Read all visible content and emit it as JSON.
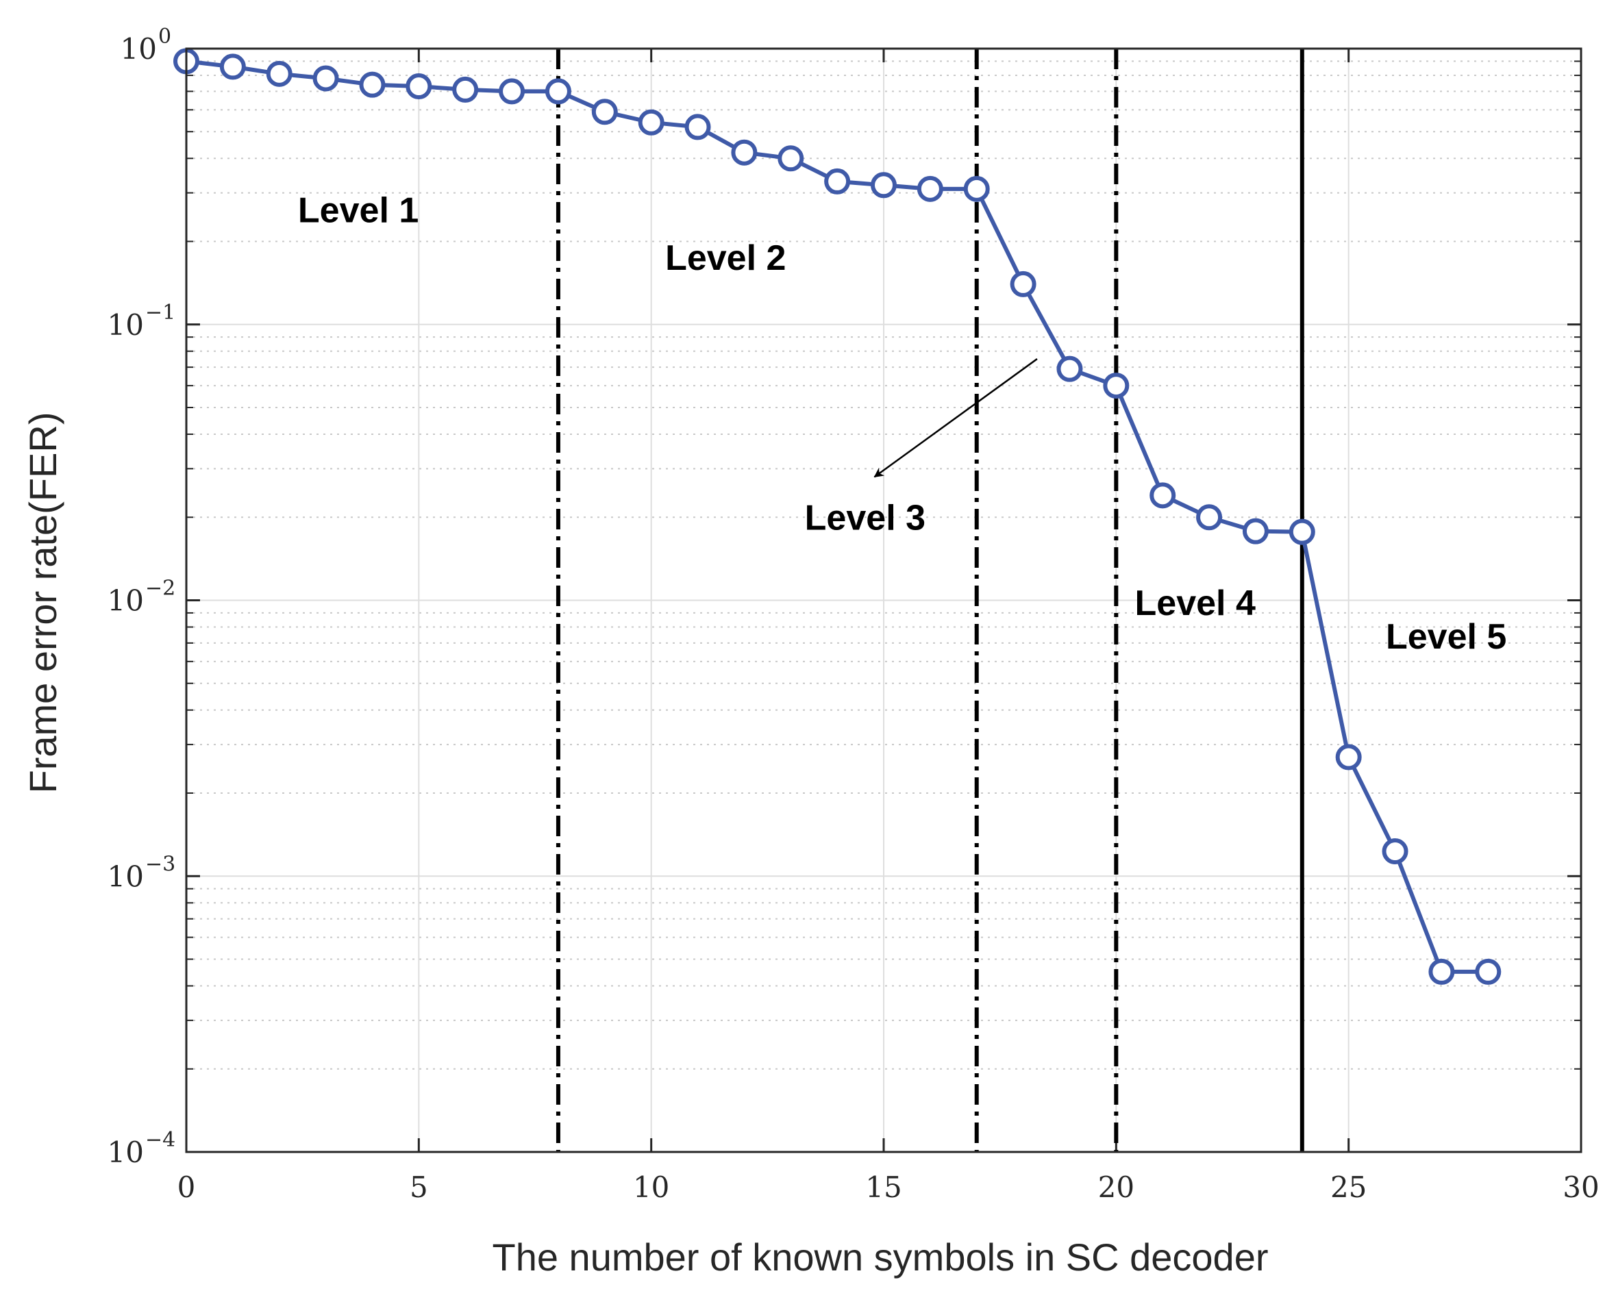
{
  "chart_data": {
    "type": "line",
    "title": "",
    "xlabel": "The number of known symbols in SC decoder",
    "ylabel": "Frame error rate(FER)",
    "xlim": [
      0,
      30
    ],
    "ylim": [
      0.0001,
      1
    ],
    "yscale": "log",
    "grid": true,
    "x_ticks": [
      0,
      5,
      10,
      15,
      20,
      25,
      30
    ],
    "y_ticks": [
      {
        "value": 1,
        "base": "10",
        "exp": "0"
      },
      {
        "value": 0.1,
        "base": "10",
        "exp": "−1"
      },
      {
        "value": 0.01,
        "base": "10",
        "exp": "−2"
      },
      {
        "value": 0.001,
        "base": "10",
        "exp": "−3"
      },
      {
        "value": 0.0001,
        "base": "10",
        "exp": "−4"
      }
    ],
    "series": [
      {
        "color": "#3f5aa8",
        "marker": "circle",
        "x": [
          0,
          1,
          2,
          3,
          4,
          5,
          6,
          7,
          8,
          9,
          10,
          11,
          12,
          13,
          14,
          15,
          16,
          17,
          18,
          19,
          20,
          21,
          22,
          23,
          24,
          25,
          26,
          27,
          28
        ],
        "y": [
          0.9,
          0.86,
          0.81,
          0.78,
          0.74,
          0.73,
          0.71,
          0.7,
          0.7,
          0.59,
          0.54,
          0.52,
          0.42,
          0.4,
          0.33,
          0.32,
          0.31,
          0.31,
          0.14,
          0.069,
          0.06,
          0.024,
          0.02,
          0.0178,
          0.0177,
          0.0027,
          0.00123,
          0.00045,
          0.00045
        ]
      }
    ],
    "vertical_lines": [
      {
        "x": 8,
        "style": "dashdot"
      },
      {
        "x": 17,
        "style": "dashdot"
      },
      {
        "x": 20,
        "style": "dashdot"
      },
      {
        "x": 24,
        "style": "solid"
      }
    ],
    "annotations": [
      {
        "text": "Level 1",
        "x": 3.7,
        "y": 0.26
      },
      {
        "text": "Level 2",
        "x": 11.6,
        "y": 0.175
      },
      {
        "text": "Level 3",
        "x": 14.6,
        "y": 0.02
      },
      {
        "text": "Level 4",
        "x": 21.7,
        "y": 0.0098
      },
      {
        "text": "Level 5",
        "x": 27.1,
        "y": 0.0074
      }
    ],
    "arrow": {
      "from_x": 18.3,
      "from_y": 0.075,
      "to_x": 14.8,
      "to_y": 0.028
    }
  }
}
